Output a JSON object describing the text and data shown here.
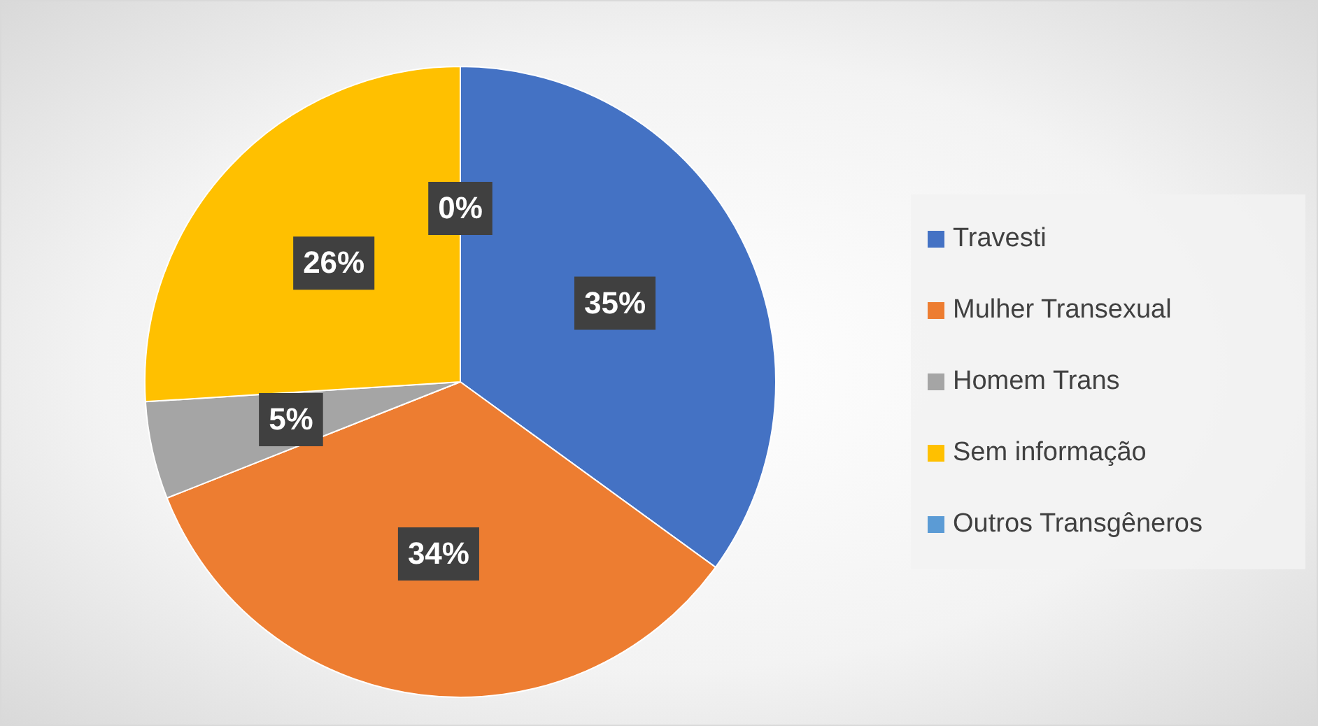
{
  "chart_data": {
    "type": "pie",
    "categories": [
      "Travesti",
      "Mulher Transexual",
      "Homem Trans",
      "Sem informação",
      "Outros Transgêneros"
    ],
    "values": [
      35,
      34,
      5,
      26,
      0
    ],
    "colors": [
      "#4472c4",
      "#ed7d31",
      "#a5a5a5",
      "#ffc000",
      "#5b9bd5"
    ],
    "value_labels": [
      "35%",
      "34%",
      "5%",
      "26%",
      "0%"
    ],
    "legend": "right"
  }
}
